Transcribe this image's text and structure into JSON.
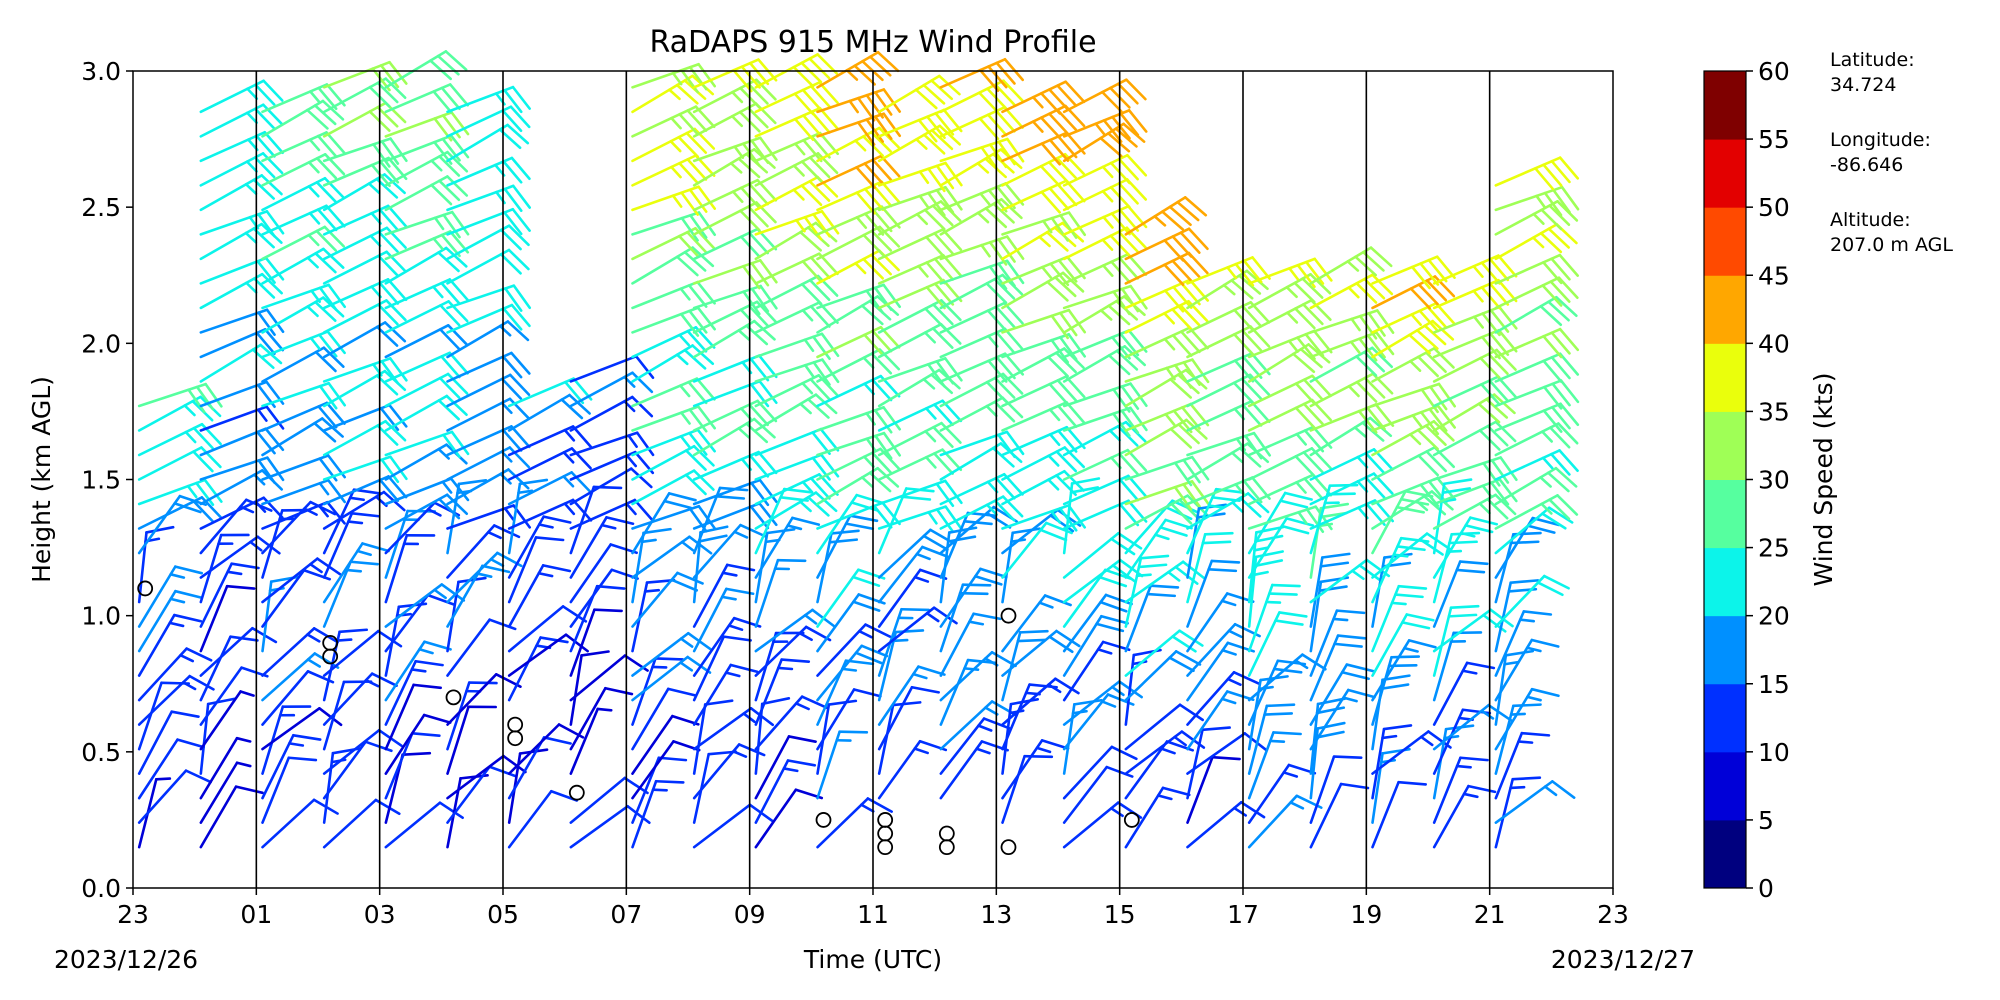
{
  "chart_data": {
    "type": "wind_barb_profile",
    "title": "RaDAPS 915 MHz Wind Profile",
    "xlabel": "Time (UTC)",
    "ylabel": "Height (km AGL)",
    "xlim_hours": [
      0,
      24
    ],
    "ylim": [
      0,
      3
    ],
    "x_ticks": [
      {
        "hours": 0,
        "label": "23"
      },
      {
        "hours": 2,
        "label": "01"
      },
      {
        "hours": 4,
        "label": "03"
      },
      {
        "hours": 6,
        "label": "05"
      },
      {
        "hours": 8,
        "label": "07"
      },
      {
        "hours": 10,
        "label": "09"
      },
      {
        "hours": 12,
        "label": "11"
      },
      {
        "hours": 14,
        "label": "13"
      },
      {
        "hours": 16,
        "label": "15"
      },
      {
        "hours": 18,
        "label": "17"
      },
      {
        "hours": 20,
        "label": "19"
      },
      {
        "hours": 22,
        "label": "21"
      },
      {
        "hours": 24,
        "label": "23"
      }
    ],
    "y_ticks": [
      "0.0",
      "0.5",
      "1.0",
      "1.5",
      "2.0",
      "2.5",
      "3.0"
    ],
    "date_start": "2023/12/26",
    "date_end": "2023/12/27",
    "grid_x": true,
    "colorbar": {
      "label": "Wind Speed (kts)",
      "ticks": [
        "0",
        "5",
        "10",
        "15",
        "20",
        "25",
        "30",
        "35",
        "40",
        "45",
        "50",
        "55",
        "60"
      ],
      "colors": [
        "#00007f",
        "#0000d8",
        "#0030ff",
        "#0090ff",
        "#0cf4ea",
        "#56ff9f",
        "#9fff56",
        "#eaff0c",
        "#ffa700",
        "#ff4a00",
        "#e30000",
        "#7f0000"
      ]
    },
    "profiles": [
      {
        "hours": 0.1,
        "top": 1.85,
        "low_speed": 8,
        "high_speed": 27,
        "calm": [
          1.1
        ]
      },
      {
        "hours": 1.1,
        "top": 2.9,
        "low_speed": 7,
        "high_speed": 27,
        "calm": []
      },
      {
        "hours": 2.1,
        "top": 2.9,
        "low_speed": 10,
        "high_speed": 28,
        "calm": []
      },
      {
        "hours": 3.1,
        "top": 2.95,
        "low_speed": 10,
        "high_speed": 30,
        "calm": [
          0.85,
          0.9
        ]
      },
      {
        "hours": 4.1,
        "top": 2.95,
        "low_speed": 9,
        "high_speed": 30,
        "calm": []
      },
      {
        "hours": 5.1,
        "top": 2.9,
        "low_speed": 9,
        "high_speed": 25,
        "calm": [
          0.7
        ]
      },
      {
        "hours": 6.1,
        "top": 1.85,
        "low_speed": 8,
        "high_speed": 19,
        "calm": [
          0.55,
          0.6
        ]
      },
      {
        "hours": 7.1,
        "top": 1.9,
        "low_speed": 7,
        "high_speed": 14,
        "calm": [
          0.35
        ]
      },
      {
        "hours": 8.1,
        "top": 2.95,
        "low_speed": 10,
        "high_speed": 38,
        "calm": []
      },
      {
        "hours": 9.1,
        "top": 2.95,
        "low_speed": 10,
        "high_speed": 38,
        "calm": []
      },
      {
        "hours": 10.1,
        "top": 3.0,
        "low_speed": 10,
        "high_speed": 42,
        "calm": []
      },
      {
        "hours": 11.1,
        "top": 3.0,
        "low_speed": 11,
        "high_speed": 44,
        "calm": [
          0.25
        ]
      },
      {
        "hours": 12.1,
        "top": 2.9,
        "low_speed": 10,
        "high_speed": 40,
        "calm": [
          0.15,
          0.2,
          0.25
        ]
      },
      {
        "hours": 13.1,
        "top": 2.95,
        "low_speed": 11,
        "high_speed": 40,
        "calm": [
          0.15,
          0.2
        ]
      },
      {
        "hours": 14.1,
        "top": 2.9,
        "low_speed": 11,
        "high_speed": 43,
        "calm": [
          0.15,
          1.0
        ]
      },
      {
        "hours": 15.1,
        "top": 2.85,
        "low_speed": 11,
        "high_speed": 42,
        "calm": []
      },
      {
        "hours": 16.1,
        "top": 2.4,
        "low_speed": 10,
        "high_speed": 45,
        "calm": [
          0.25
        ]
      },
      {
        "hours": 17.1,
        "top": 2.3,
        "low_speed": 10,
        "high_speed": 37,
        "calm": []
      },
      {
        "hours": 18.1,
        "top": 2.25,
        "low_speed": 13,
        "high_speed": 36,
        "calm": []
      },
      {
        "hours": 19.1,
        "top": 2.25,
        "low_speed": 13,
        "high_speed": 36,
        "calm": []
      },
      {
        "hours": 20.1,
        "top": 2.3,
        "low_speed": 13,
        "high_speed": 42,
        "calm": []
      },
      {
        "hours": 21.1,
        "top": 2.25,
        "low_speed": 13,
        "high_speed": 36,
        "calm": []
      },
      {
        "hours": 22.1,
        "top": 2.6,
        "low_speed": 12,
        "high_speed": 38,
        "calm": []
      }
    ]
  },
  "station": {
    "latitude_label": "Latitude:",
    "latitude": "34.724",
    "longitude_label": "Longitude:",
    "longitude": "-86.646",
    "altitude_label": "Altitude:",
    "altitude": "207.0 m AGL"
  }
}
